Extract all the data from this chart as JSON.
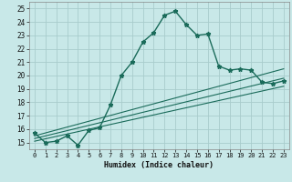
{
  "xlabel": "Humidex (Indice chaleur)",
  "xlim": [
    -0.5,
    23.5
  ],
  "ylim": [
    14.5,
    25.5
  ],
  "xticks": [
    0,
    1,
    2,
    3,
    4,
    5,
    6,
    7,
    8,
    9,
    10,
    11,
    12,
    13,
    14,
    15,
    16,
    17,
    18,
    19,
    20,
    21,
    22,
    23
  ],
  "yticks": [
    15,
    16,
    17,
    18,
    19,
    20,
    21,
    22,
    23,
    24,
    25
  ],
  "bg_color": "#c8e8e8",
  "grid_color": "#a8cccc",
  "line_color": "#1a6b5a",
  "main_x": [
    0,
    1,
    2,
    3,
    4,
    5,
    6,
    7,
    8,
    9,
    10,
    11,
    12,
    13,
    14,
    15,
    16,
    17,
    18,
    19,
    20,
    21,
    22,
    23
  ],
  "main_y": [
    15.7,
    15.0,
    15.1,
    15.5,
    14.8,
    15.9,
    16.1,
    17.8,
    20.0,
    21.0,
    22.5,
    23.2,
    24.5,
    24.8,
    23.8,
    23.0,
    23.1,
    20.7,
    20.4,
    20.5,
    20.4,
    19.5,
    19.4,
    19.6
  ],
  "line2_x": [
    0,
    23
  ],
  "line2_y": [
    15.5,
    20.5
  ],
  "line3_x": [
    0,
    23
  ],
  "line3_y": [
    15.3,
    19.8
  ],
  "line4_x": [
    0,
    23
  ],
  "line4_y": [
    15.1,
    19.2
  ]
}
